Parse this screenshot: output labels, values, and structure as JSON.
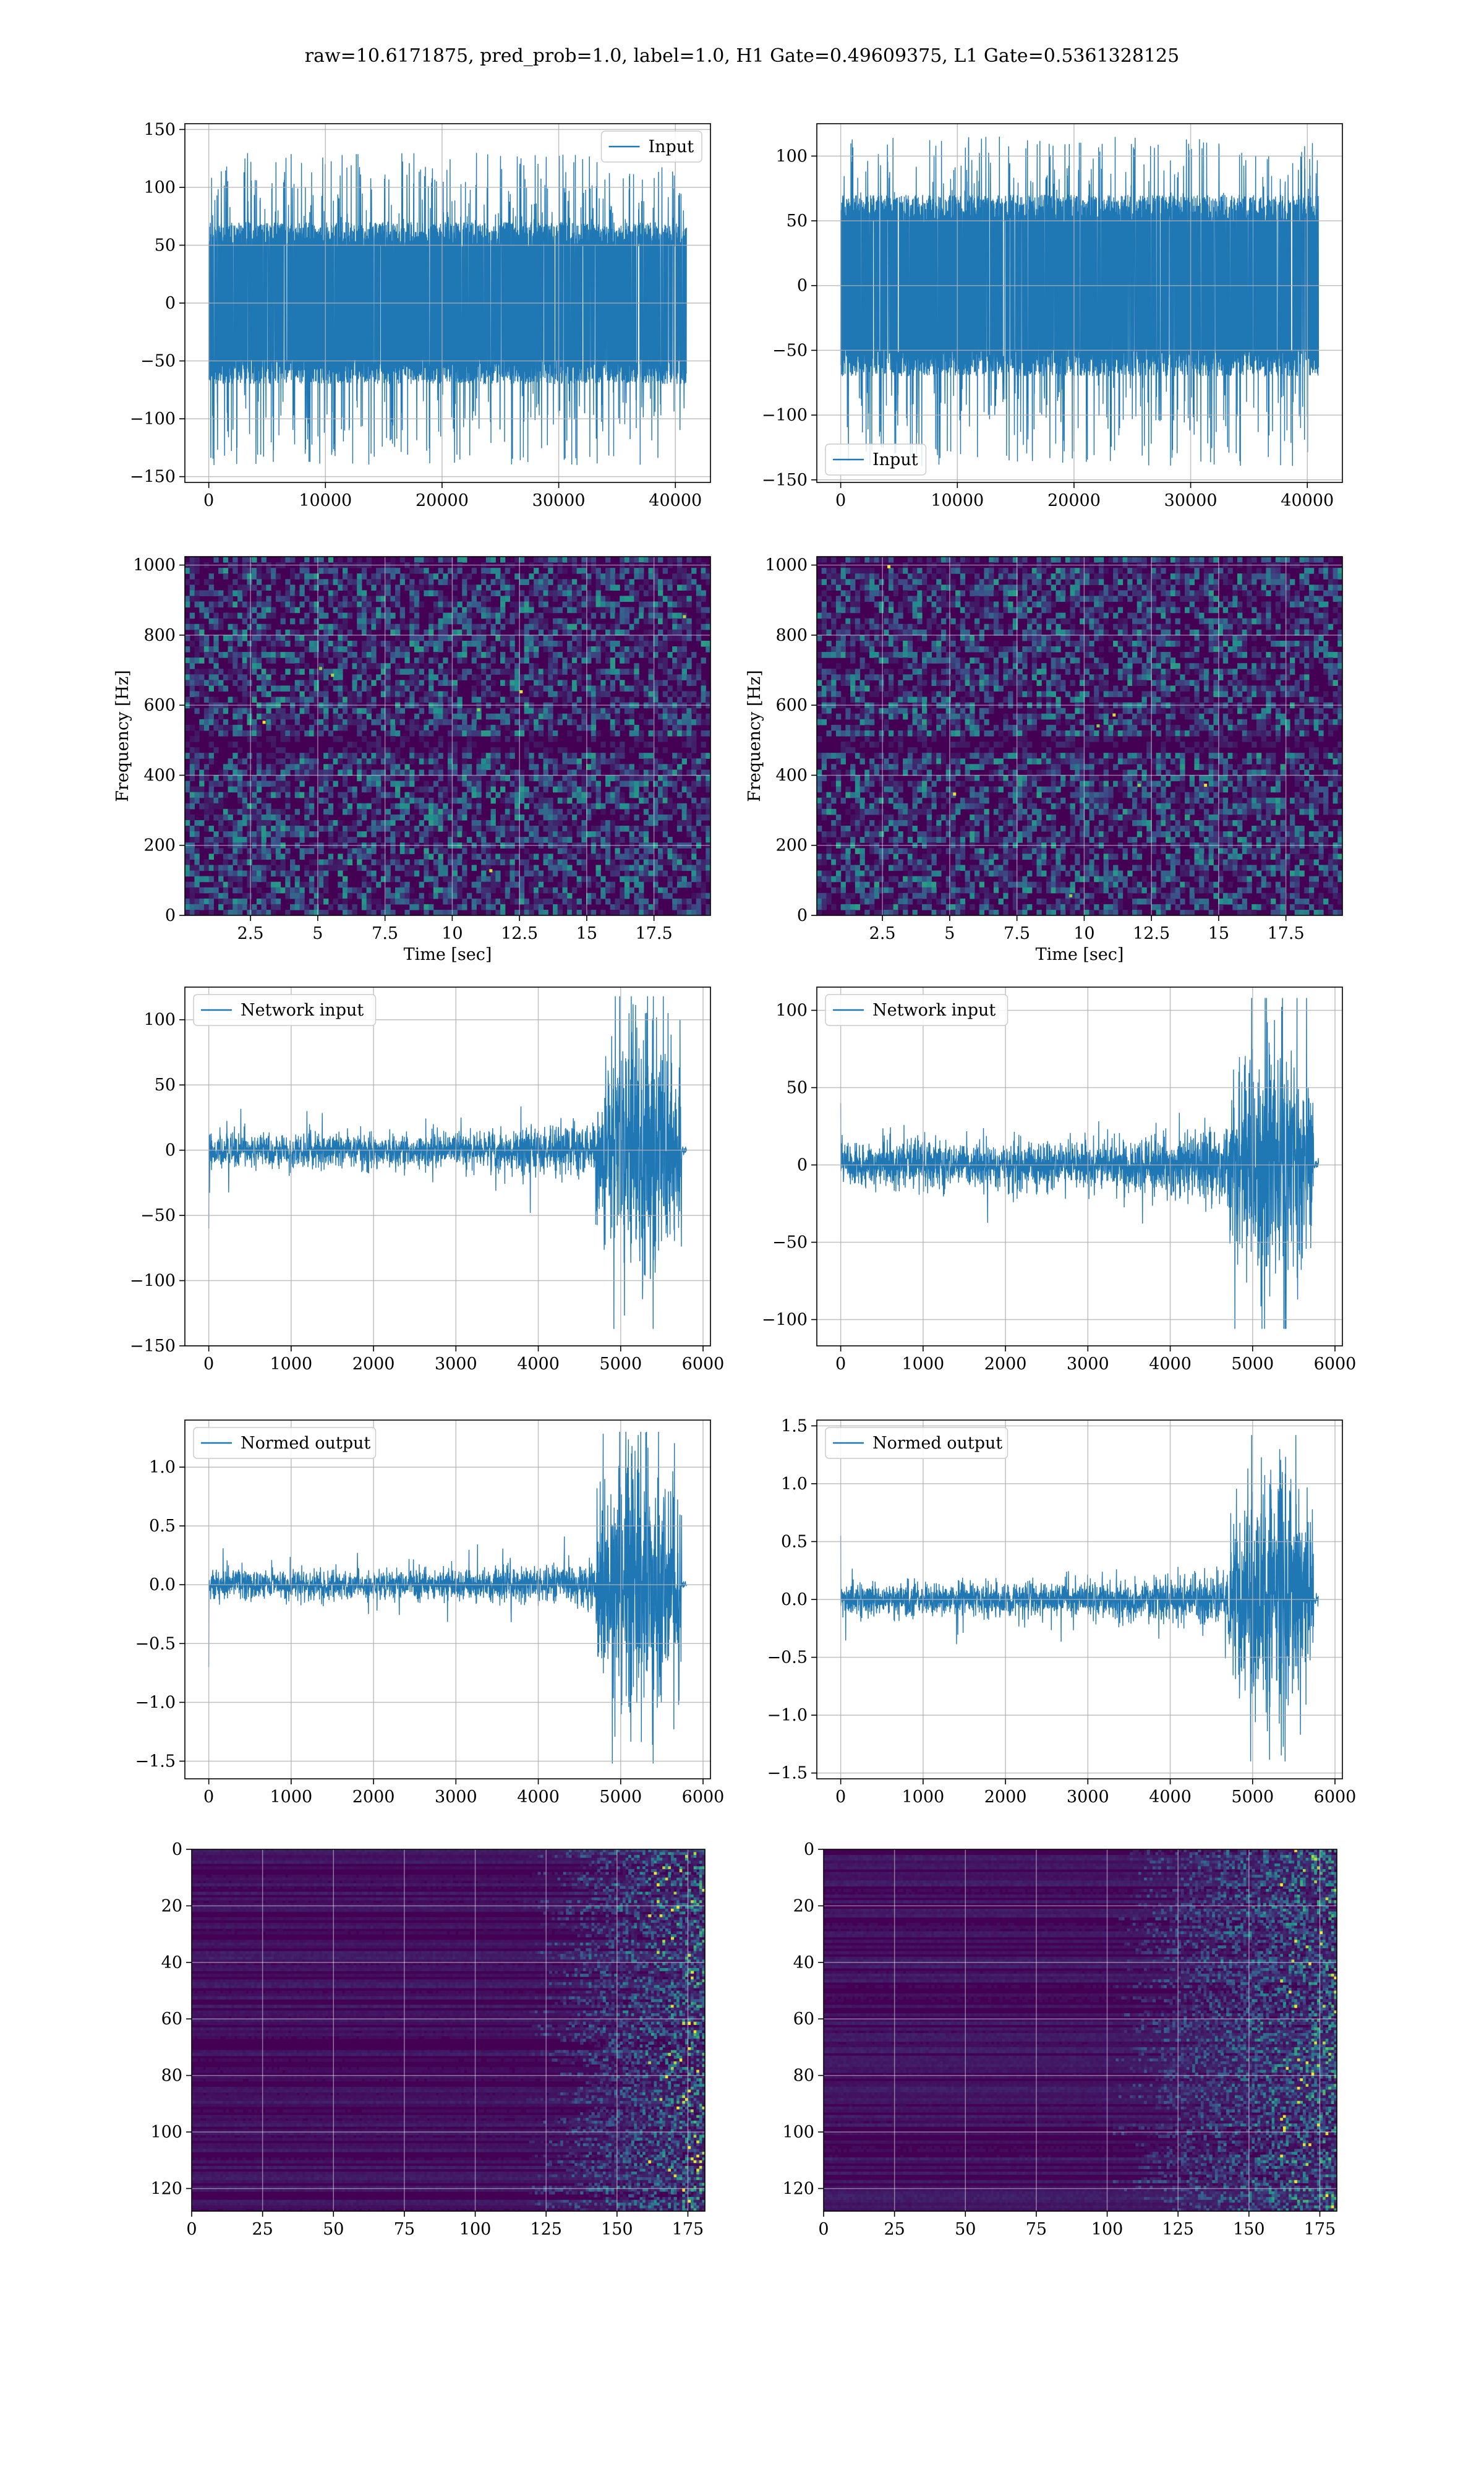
{
  "title": "raw=10.6171875, pred_prob=1.0, label=1.0, H1 Gate=0.49609375, L1 Gate=0.5361328125",
  "colors": {
    "line": "#1f77b4",
    "grid": "#b0b0b0",
    "viridis_low": "#440154",
    "viridis_mid": "#21918c",
    "viridis_high": "#fde725"
  },
  "chart_data": [
    {
      "id": "r1-left",
      "type": "line",
      "style": "noise",
      "legend": {
        "label": "Input",
        "loc": "upper right"
      },
      "xlim": [
        -2048,
        43008
      ],
      "ylim": [
        -155,
        155
      ],
      "x_ticks": [
        0,
        10000,
        20000,
        30000,
        40000
      ],
      "y_ticks": [
        -150,
        -100,
        -50,
        0,
        50,
        100,
        150
      ],
      "xlabel": "",
      "ylabel": "",
      "signal": {
        "x_start": 0,
        "x_end": 40960,
        "core_amplitude": 70,
        "spike_max": 130,
        "spike_min": -140
      }
    },
    {
      "id": "r1-right",
      "type": "line",
      "style": "noise",
      "legend": {
        "label": "Input",
        "loc": "lower left"
      },
      "xlim": [
        -2048,
        43008
      ],
      "ylim": [
        -152,
        125
      ],
      "x_ticks": [
        0,
        10000,
        20000,
        30000,
        40000
      ],
      "y_ticks": [
        -150,
        -100,
        -50,
        0,
        50,
        100
      ],
      "xlabel": "",
      "ylabel": "",
      "signal": {
        "x_start": 0,
        "x_end": 40960,
        "core_amplitude": 70,
        "spike_max": 115,
        "spike_min": -140
      }
    },
    {
      "id": "r2-left",
      "type": "heatmap",
      "style": "spectrogram",
      "xlim": [
        0.06,
        19.6
      ],
      "ylim": [
        0,
        1024
      ],
      "x_ticks": [
        2.5,
        5.0,
        7.5,
        10.0,
        12.5,
        15.0,
        17.5
      ],
      "y_ticks": [
        0,
        200,
        400,
        600,
        800,
        1000
      ],
      "xlabel": "Time [sec]",
      "ylabel": "Frequency [Hz]",
      "colormap": "viridis",
      "dark_bands_hz": [
        480,
        505,
        1000
      ]
    },
    {
      "id": "r2-right",
      "type": "heatmap",
      "style": "spectrogram",
      "xlim": [
        0.06,
        19.6
      ],
      "ylim": [
        0,
        1024
      ],
      "x_ticks": [
        2.5,
        5.0,
        7.5,
        10.0,
        12.5,
        15.0,
        17.5
      ],
      "y_ticks": [
        0,
        200,
        400,
        600,
        800,
        1000
      ],
      "xlabel": "Time [sec]",
      "ylabel": "Frequency [Hz]",
      "colormap": "viridis",
      "dark_bands_hz": [
        480,
        505,
        1000
      ]
    },
    {
      "id": "r3-left",
      "type": "line",
      "style": "chirp",
      "legend": {
        "label": "Network input",
        "loc": "upper left"
      },
      "xlim": [
        -290,
        6090
      ],
      "ylim": [
        -150,
        125
      ],
      "x_ticks": [
        0,
        1000,
        2000,
        3000,
        4000,
        5000,
        6000
      ],
      "y_ticks": [
        -150,
        -100,
        -50,
        0,
        50,
        100
      ],
      "xlabel": "",
      "ylabel": "",
      "signal": {
        "x_end": 5800,
        "start_spike": -60,
        "base_amplitude": 14,
        "burst_start": 4700,
        "burst_end": 5740,
        "peak": 118,
        "trough": -137
      }
    },
    {
      "id": "r3-right",
      "type": "line",
      "style": "chirp",
      "legend": {
        "label": "Network input",
        "loc": "upper left"
      },
      "xlim": [
        -290,
        6090
      ],
      "ylim": [
        -117,
        115
      ],
      "x_ticks": [
        0,
        1000,
        2000,
        3000,
        4000,
        5000,
        6000
      ],
      "y_ticks": [
        -100,
        -50,
        0,
        50,
        100
      ],
      "xlabel": "",
      "ylabel": "",
      "signal": {
        "x_end": 5800,
        "start_spike": 40,
        "base_amplitude": 16,
        "burst_start": 4700,
        "burst_end": 5740,
        "peak": 108,
        "trough": -106
      }
    },
    {
      "id": "r4-left",
      "type": "line",
      "style": "chirp",
      "legend": {
        "label": "Normed output",
        "loc": "upper left"
      },
      "xlim": [
        -290,
        6090
      ],
      "ylim": [
        -1.65,
        1.4
      ],
      "x_ticks": [
        0,
        1000,
        2000,
        3000,
        4000,
        5000,
        6000
      ],
      "y_ticks": [
        -1.5,
        -1.0,
        -0.5,
        0.0,
        0.5,
        1.0
      ],
      "y_tick_labels": [
        "−1.5",
        "−1.0",
        "−0.5",
        "0.0",
        "0.5",
        "1.0"
      ],
      "xlabel": "",
      "ylabel": "",
      "signal": {
        "x_end": 5800,
        "start_spike": -0.7,
        "base_amplitude": 0.13,
        "burst_start": 4700,
        "burst_end": 5740,
        "peak": 1.3,
        "trough": -1.52
      }
    },
    {
      "id": "r4-right",
      "type": "line",
      "style": "chirp",
      "legend": {
        "label": "Normed output",
        "loc": "upper left"
      },
      "xlim": [
        -290,
        6090
      ],
      "ylim": [
        -1.55,
        1.55
      ],
      "x_ticks": [
        0,
        1000,
        2000,
        3000,
        4000,
        5000,
        6000
      ],
      "y_ticks": [
        -1.5,
        -1.0,
        -0.5,
        0.0,
        0.5,
        1.0,
        1.5
      ],
      "y_tick_labels": [
        "−1.5",
        "−1.0",
        "−0.5",
        "0.0",
        "0.5",
        "1.0",
        "1.5"
      ],
      "xlabel": "",
      "ylabel": "",
      "signal": {
        "x_end": 5800,
        "start_spike": 0.55,
        "base_amplitude": 0.16,
        "burst_start": 4700,
        "burst_end": 5740,
        "peak": 1.42,
        "trough": -1.4
      }
    },
    {
      "id": "r5-left",
      "type": "heatmap",
      "style": "feature-map",
      "xlim": [
        0,
        181
      ],
      "ylim": [
        128,
        0
      ],
      "x_ticks": [
        0,
        25,
        50,
        75,
        100,
        125,
        150,
        175
      ],
      "y_ticks": [
        0,
        20,
        40,
        60,
        80,
        100,
        120
      ],
      "xlabel": "",
      "ylabel": "",
      "colormap": "viridis",
      "activity_onset": 125
    },
    {
      "id": "r5-right",
      "type": "heatmap",
      "style": "feature-map",
      "xlim": [
        0,
        181
      ],
      "ylim": [
        128,
        0
      ],
      "x_ticks": [
        0,
        25,
        50,
        75,
        100,
        125,
        150,
        175
      ],
      "y_ticks": [
        0,
        20,
        40,
        60,
        80,
        100,
        120
      ],
      "xlabel": "",
      "ylabel": "",
      "colormap": "viridis",
      "activity_onset": 110
    }
  ]
}
